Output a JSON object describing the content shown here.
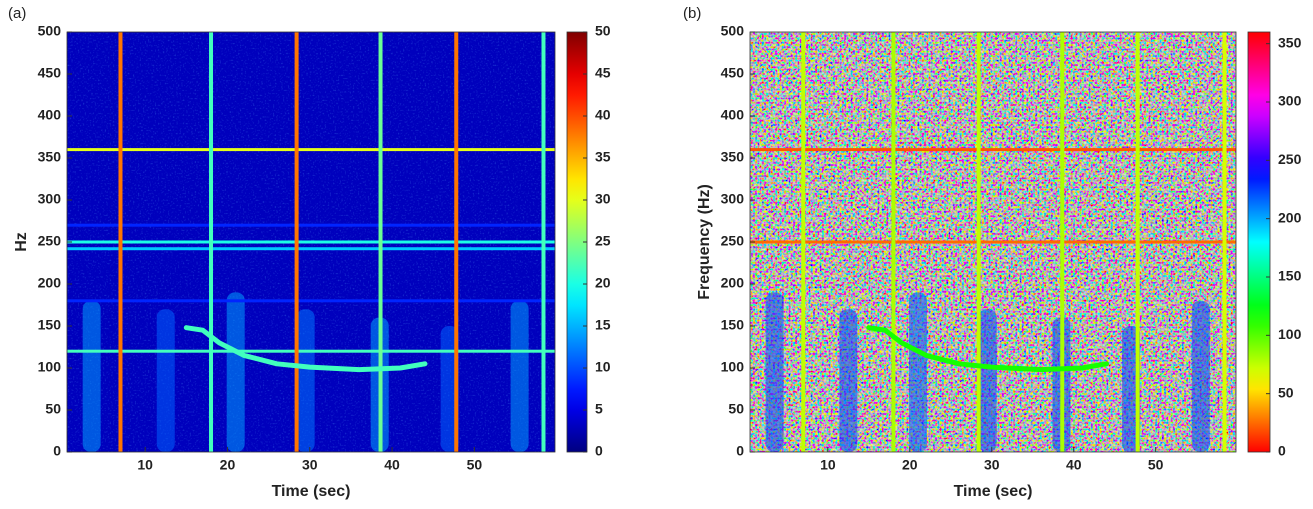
{
  "chart_data": [
    {
      "type": "spectrogram",
      "label": "(a)",
      "xlabel": "Time (sec)",
      "ylabel": "Hz",
      "xlim": [
        0.5,
        59.8
      ],
      "xticks": [
        10,
        20,
        30,
        40,
        50
      ],
      "ylim": [
        0,
        500
      ],
      "yticks": [
        0,
        50,
        100,
        150,
        200,
        250,
        300,
        350,
        400,
        450,
        500
      ],
      "colormap": "jet",
      "clim": [
        0,
        50
      ],
      "cticks": [
        0,
        5,
        10,
        15,
        20,
        25,
        30,
        35,
        40,
        45,
        50
      ],
      "background": 3,
      "lines": [
        {
          "freq": 120,
          "value": 22
        },
        {
          "freq": 180,
          "value": 8
        },
        {
          "freq": 242,
          "value": 16
        },
        {
          "freq": 250,
          "value": 20
        },
        {
          "freq": 270,
          "value": 8
        },
        {
          "freq": 360,
          "value": 30
        }
      ],
      "pulses": [
        {
          "time": 7,
          "value": 38
        },
        {
          "time": 18,
          "value": 22
        },
        {
          "time": 28.4,
          "value": 38
        },
        {
          "time": 38.6,
          "value": 24
        },
        {
          "time": 47.8,
          "value": 38
        },
        {
          "time": 58.4,
          "value": 22
        }
      ],
      "bursts": [
        {
          "time": 3.5,
          "top": 180,
          "value": 14
        },
        {
          "time": 12.5,
          "top": 170,
          "value": 11
        },
        {
          "time": 21,
          "top": 190,
          "value": 14
        },
        {
          "time": 29.5,
          "top": 170,
          "value": 12
        },
        {
          "time": 38.5,
          "top": 160,
          "value": 14
        },
        {
          "time": 47,
          "top": 150,
          "value": 11
        },
        {
          "time": 55.5,
          "top": 180,
          "value": 14
        }
      ],
      "chirp": {
        "time": [
          15,
          17,
          19,
          22,
          26,
          30,
          36,
          41,
          44
        ],
        "freq": [
          148,
          145,
          130,
          115,
          105,
          101,
          98,
          100,
          105
        ],
        "value": 22
      }
    },
    {
      "type": "spectrogram",
      "label": "(b)",
      "xlabel": "Time (sec)",
      "ylabel": "Frequency (Hz)",
      "xlim": [
        0.5,
        59.8
      ],
      "xticks": [
        10,
        20,
        30,
        40,
        50
      ],
      "ylim": [
        0,
        500
      ],
      "yticks": [
        0,
        50,
        100,
        150,
        200,
        250,
        300,
        350,
        400,
        450,
        500
      ],
      "colormap": "hsv",
      "clim": [
        0,
        360
      ],
      "cticks": [
        0,
        50,
        100,
        150,
        200,
        250,
        300,
        350
      ],
      "lines": [
        {
          "freq": 250,
          "value": 25
        },
        {
          "freq": 360,
          "value": 20
        }
      ],
      "pulses": [
        {
          "time": 7,
          "value": 75
        },
        {
          "time": 18,
          "value": 80
        },
        {
          "time": 28.4,
          "value": 75
        },
        {
          "time": 38.6,
          "value": 80
        },
        {
          "time": 47.8,
          "value": 75
        },
        {
          "time": 58.4,
          "value": 70
        }
      ],
      "bursts": [
        {
          "time": 3.5,
          "top": 190,
          "value": 225
        },
        {
          "time": 12.5,
          "top": 170,
          "value": 225
        },
        {
          "time": 21,
          "top": 190,
          "value": 220
        },
        {
          "time": 29.5,
          "top": 170,
          "value": 225
        },
        {
          "time": 38.5,
          "top": 160,
          "value": 225
        },
        {
          "time": 47,
          "top": 150,
          "value": 225
        },
        {
          "time": 55.5,
          "top": 180,
          "value": 225
        }
      ],
      "chirp": {
        "time": [
          15,
          17,
          19,
          22,
          26,
          30,
          36,
          41,
          44
        ],
        "freq": [
          148,
          145,
          130,
          115,
          105,
          101,
          98,
          100,
          105
        ],
        "value": 115
      }
    }
  ]
}
